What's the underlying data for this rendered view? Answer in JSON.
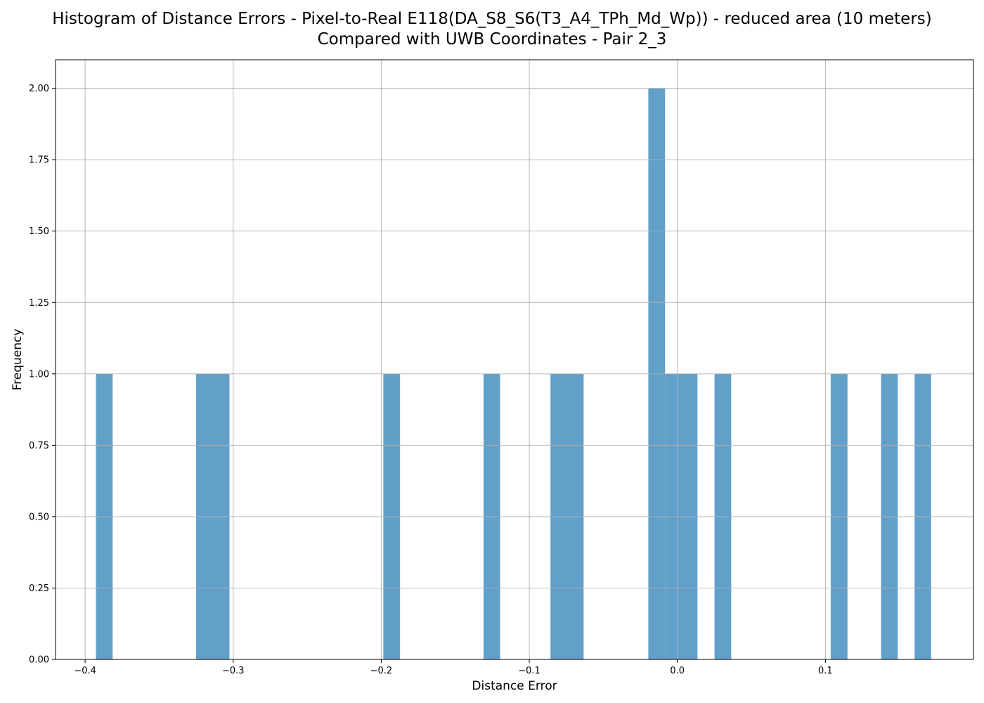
{
  "chart_data": {
    "type": "bar",
    "title": [
      "Histogram of Distance Errors - Pixel-to-Real E118(DA_S8_S6(T3_A4_TPh_Md_Wp)) - reduced area (10 meters)",
      "Compared with UWB Coordinates - Pair 2_3"
    ],
    "xlabel": "Distance Error",
    "ylabel": "Frequency",
    "xlim": [
      -0.42,
      0.2
    ],
    "ylim": [
      0,
      2.1
    ],
    "grid": true,
    "bar_color": "#1f77b4",
    "bar_alpha": 0.7,
    "x_ticks": [
      -0.4,
      -0.3,
      -0.2,
      -0.1,
      0.0,
      0.1
    ],
    "x_tick_labels": [
      "−0.4",
      "−0.3",
      "−0.2",
      "−0.1",
      "0.0",
      "0.1"
    ],
    "y_ticks": [
      0,
      0.25,
      0.5,
      0.75,
      1.0,
      1.25,
      1.5,
      1.75,
      2.0
    ],
    "y_tick_labels": [
      "0.00",
      "0.25",
      "0.50",
      "0.75",
      "1.00",
      "1.25",
      "1.50",
      "1.75",
      "2.00"
    ],
    "bins": [
      {
        "x0": -0.3927,
        "x1": -0.3814,
        "count": 1
      },
      {
        "x0": -0.3251,
        "x1": -0.3025,
        "count": 1
      },
      {
        "x0": -0.1986,
        "x1": -0.1873,
        "count": 1
      },
      {
        "x0": -0.1309,
        "x1": -0.1197,
        "count": 1
      },
      {
        "x0": -0.0857,
        "x1": -0.0633,
        "count": 1
      },
      {
        "x0": -0.0196,
        "x1": -0.0083,
        "count": 2
      },
      {
        "x0": -0.0083,
        "x1": 0.0136,
        "count": 1
      },
      {
        "x0": 0.0251,
        "x1": 0.0364,
        "count": 1
      },
      {
        "x0": 0.1036,
        "x1": 0.1149,
        "count": 1
      },
      {
        "x0": 0.1376,
        "x1": 0.1489,
        "count": 1
      },
      {
        "x0": 0.1602,
        "x1": 0.1714,
        "count": 1
      }
    ]
  }
}
